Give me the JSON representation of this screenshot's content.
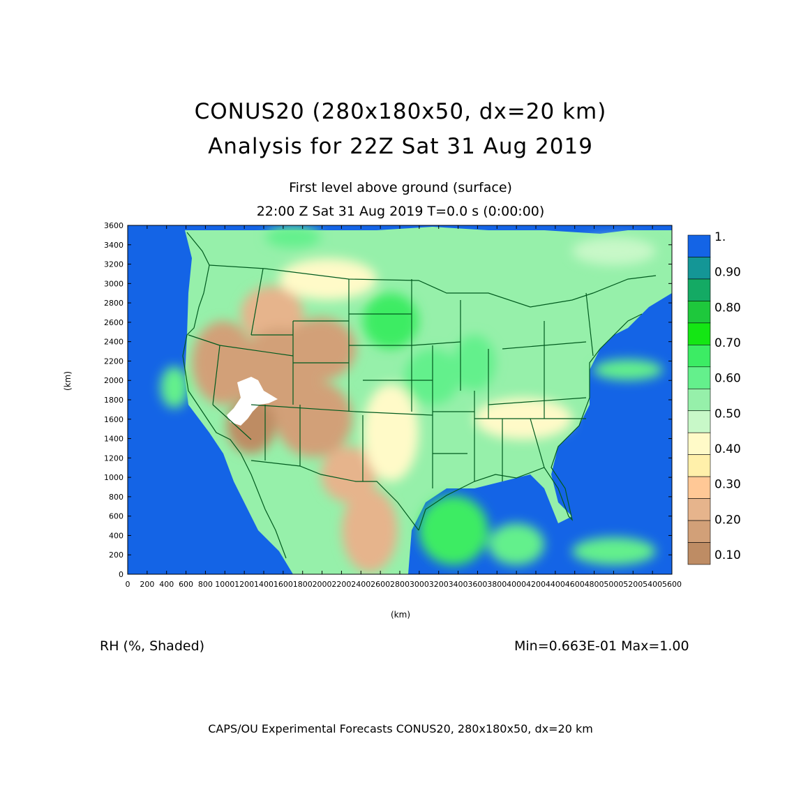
{
  "title": {
    "line1": "CONUS20 (280x180x50, dx=20 km)",
    "line2": "Analysis for 22Z Sat 31 Aug 2019"
  },
  "subtitle": {
    "line1": "First level above ground (surface)",
    "line2": "22:00 Z Sat 31 Aug 2019    T=0.0 s (0:00:00)"
  },
  "axes": {
    "x_label": "(km)",
    "y_label": "(km)",
    "x_ticks": [
      "0",
      "200",
      "400",
      "600",
      "800",
      "1000",
      "1200",
      "1400",
      "1600",
      "1800",
      "2000",
      "2200",
      "2400",
      "2600",
      "2800",
      "3000",
      "3200",
      "3400",
      "3600",
      "3800",
      "4000",
      "4200",
      "4400",
      "4600",
      "4800",
      "5000",
      "5200",
      "5400",
      "5600"
    ],
    "y_ticks": [
      "0",
      "200",
      "400",
      "600",
      "800",
      "1000",
      "1200",
      "1400",
      "1600",
      "1800",
      "2000",
      "2200",
      "2400",
      "2600",
      "2800",
      "3000",
      "3200",
      "3400",
      "3600"
    ],
    "x_range": [
      0,
      5600
    ],
    "y_range": [
      0,
      3600
    ]
  },
  "colorbar": {
    "labels": [
      "1.",
      "0.90",
      "0.80",
      "0.70",
      "0.60",
      "0.50",
      "0.40",
      "0.30",
      "0.20",
      "0.10"
    ],
    "colors": [
      "#1464e6",
      "#149696",
      "#14aa64",
      "#1ec83c",
      "#14e614",
      "#3cec64",
      "#64f08c",
      "#96f0aa",
      "#c8f8c8",
      "#fffac8",
      "#fff0aa",
      "#ffc896",
      "#e6b48c",
      "#d2a078",
      "#be8c64"
    ]
  },
  "field_label": "RH (%, Shaded)",
  "min_max": "Min=0.663E-01 Max=1.00",
  "footer": "CAPS/OU Experimental Forecasts  CONUS20, 280x180x50, dx=20 km",
  "colors": {
    "ocean": "#1464e6",
    "dry_dark": "#be8c64",
    "dry": "#d2a078",
    "tan": "#e6b48c",
    "pale": "#fffac8",
    "mint": "#c8f8c8",
    "light_green": "#96f0aa",
    "green": "#64f08c",
    "bright_green": "#3cec64",
    "deep_green": "#14aa64",
    "border": "#005a1e"
  }
}
